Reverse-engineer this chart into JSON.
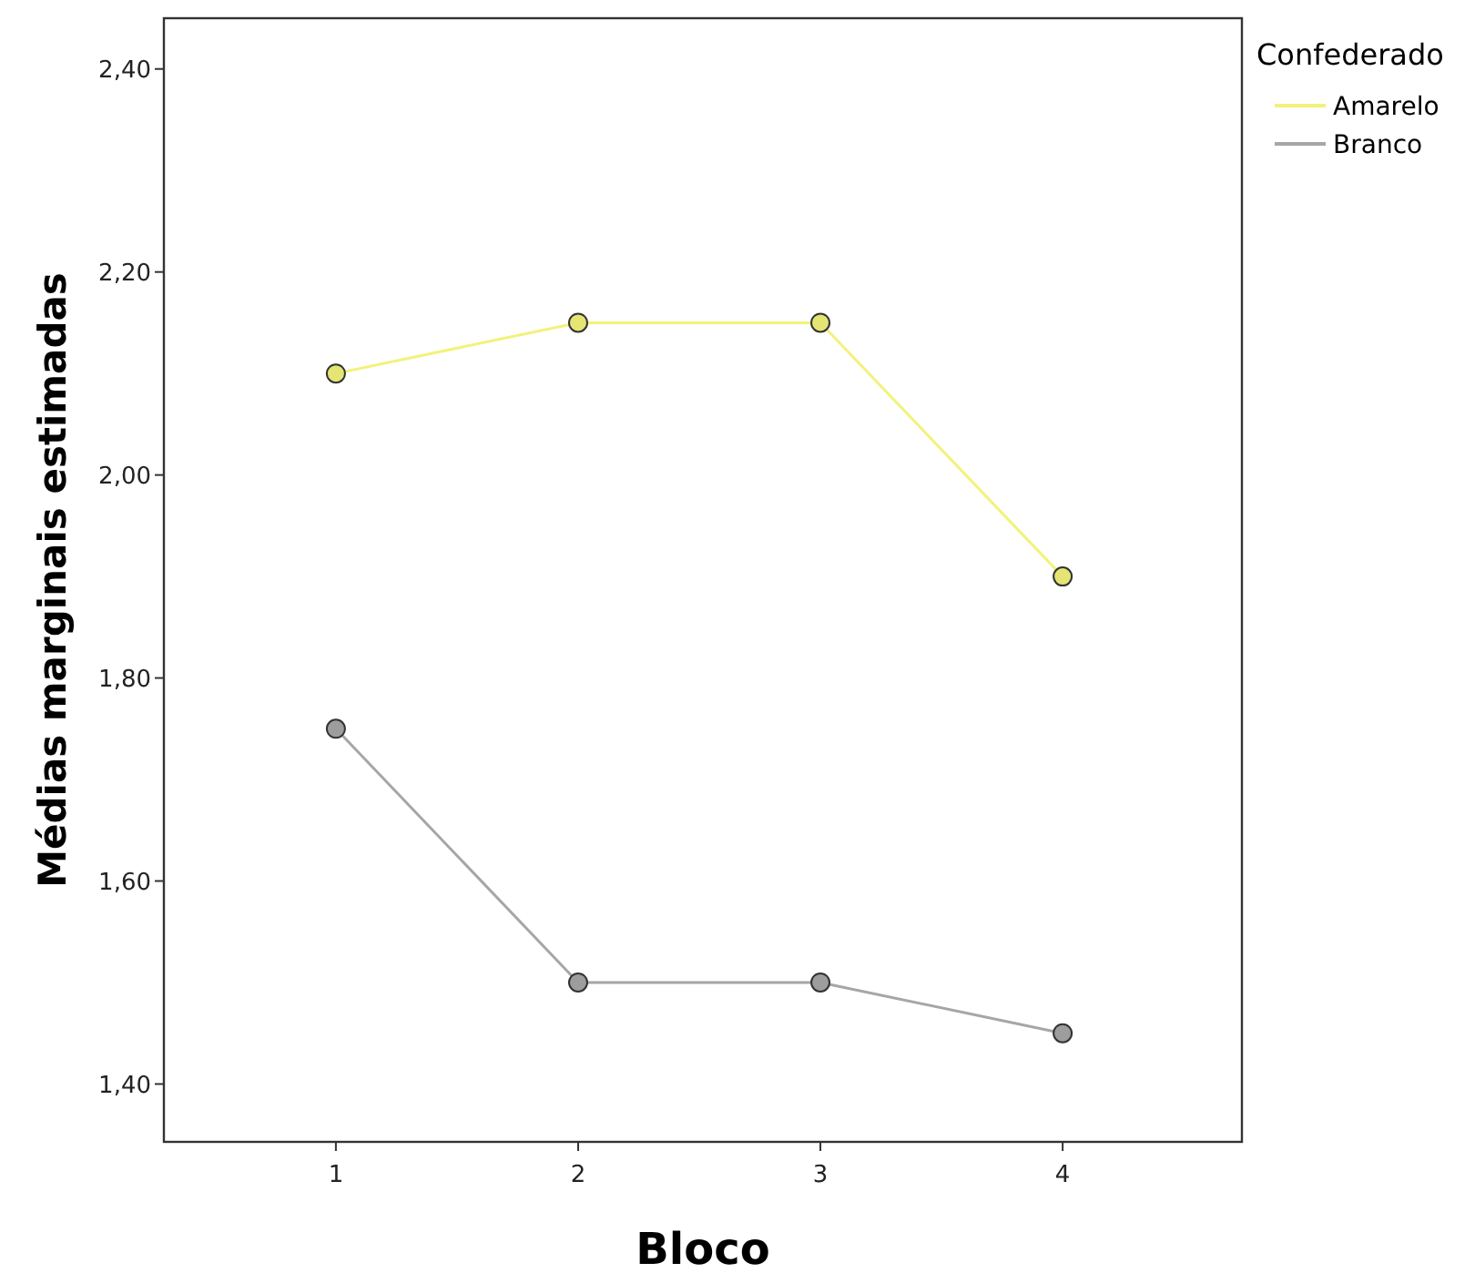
{
  "chart_data": {
    "type": "line",
    "xlabel": "Bloco",
    "ylabel": "Médias marginais estimadas",
    "legend_title": "Confederado",
    "x": [
      1,
      2,
      3,
      4
    ],
    "xlim": [
      0.29,
      4.74
    ],
    "xticks": [
      1,
      2,
      3,
      4
    ],
    "ylim": [
      1.343,
      2.45
    ],
    "yticks": [
      {
        "value": 1.4,
        "label": "1,40"
      },
      {
        "value": 1.6,
        "label": "1,60"
      },
      {
        "value": 1.8,
        "label": "1,80"
      },
      {
        "value": 2.0,
        "label": "2,00"
      },
      {
        "value": 2.2,
        "label": "2,20"
      },
      {
        "value": 2.4,
        "label": "2,40"
      }
    ],
    "series": [
      {
        "name": "Amarelo",
        "color": "#f2f27a",
        "values": [
          2.1,
          2.15,
          2.15,
          1.9
        ]
      },
      {
        "name": "Branco",
        "color": "#a6a6a6",
        "values": [
          1.75,
          1.5,
          1.5,
          1.45
        ]
      }
    ],
    "marker": "circle",
    "grid": false,
    "legend": "top right"
  }
}
